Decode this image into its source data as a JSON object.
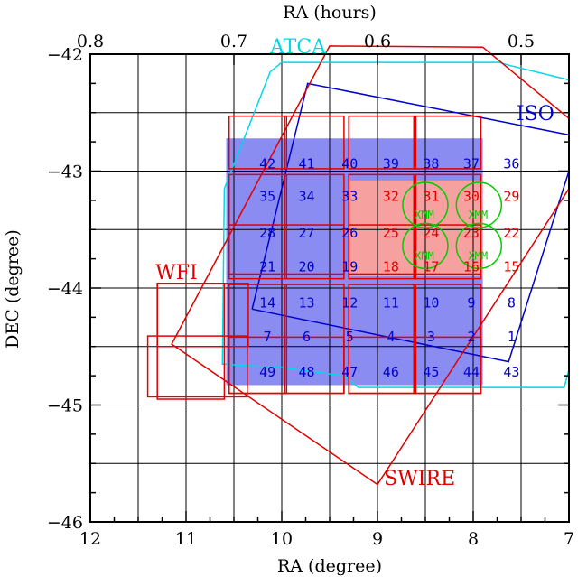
{
  "chart_data": {
    "type": "scatter",
    "xlabel": "RA (degree)",
    "ylabel": "DEC (degree)",
    "top_xlabel": "RA (hours)",
    "xlim": [
      12,
      7
    ],
    "ylim": [
      -46,
      -42
    ],
    "x_ticks": [
      "12",
      "11",
      "10",
      "9",
      "8",
      "7"
    ],
    "y_ticks": [
      "−42",
      "−43",
      "−44",
      "−45",
      "−46"
    ],
    "top_ticks": [
      {
        "label": "0.8",
        "ra": 12
      },
      {
        "label": "0.7",
        "ra": 10.5
      },
      {
        "label": "0.6",
        "ra": 9
      },
      {
        "label": "0.5",
        "ra": 7.5
      }
    ],
    "grid": {
      "ra_lines": [
        11.5,
        11,
        10.5,
        10,
        9.5,
        9,
        8.5,
        8,
        7.5
      ],
      "dec_lines": [
        -42.5,
        -43,
        -43.5,
        -44,
        -44.5,
        -45,
        -45.5
      ]
    },
    "colors": {
      "red": "#e00000",
      "blue": "#0000cc",
      "cyan": "#00d8e8",
      "green": "#00cc00",
      "blue_fill": "#8a8cf2",
      "pink_fill": "#f7a0a0",
      "black": "#000000"
    },
    "fields": [
      {
        "label": "42",
        "ra": 10.15,
        "dec": -42.93,
        "color": "blue"
      },
      {
        "label": "41",
        "ra": 9.74,
        "dec": -42.93,
        "color": "blue"
      },
      {
        "label": "40",
        "ra": 9.29,
        "dec": -42.93,
        "color": "blue"
      },
      {
        "label": "39",
        "ra": 8.86,
        "dec": -42.93,
        "color": "blue"
      },
      {
        "label": "38",
        "ra": 8.44,
        "dec": -42.93,
        "color": "blue"
      },
      {
        "label": "37",
        "ra": 8.02,
        "dec": -42.93,
        "color": "blue"
      },
      {
        "label": "36",
        "ra": 7.6,
        "dec": -42.93,
        "color": "blue"
      },
      {
        "label": "35",
        "ra": 10.15,
        "dec": -43.21,
        "color": "blue"
      },
      {
        "label": "34",
        "ra": 9.74,
        "dec": -43.21,
        "color": "blue"
      },
      {
        "label": "33",
        "ra": 9.29,
        "dec": -43.21,
        "color": "blue"
      },
      {
        "label": "32",
        "ra": 8.86,
        "dec": -43.21,
        "color": "red"
      },
      {
        "label": "31",
        "ra": 8.44,
        "dec": -43.21,
        "color": "red"
      },
      {
        "label": "30",
        "ra": 8.02,
        "dec": -43.21,
        "color": "red"
      },
      {
        "label": "29",
        "ra": 7.6,
        "dec": -43.21,
        "color": "red"
      },
      {
        "label": "28",
        "ra": 10.15,
        "dec": -43.52,
        "color": "blue"
      },
      {
        "label": "27",
        "ra": 9.74,
        "dec": -43.52,
        "color": "blue"
      },
      {
        "label": "26",
        "ra": 9.29,
        "dec": -43.52,
        "color": "blue"
      },
      {
        "label": "25",
        "ra": 8.86,
        "dec": -43.52,
        "color": "red"
      },
      {
        "label": "24",
        "ra": 8.44,
        "dec": -43.52,
        "color": "red"
      },
      {
        "label": "23",
        "ra": 8.02,
        "dec": -43.52,
        "color": "red"
      },
      {
        "label": "22",
        "ra": 7.6,
        "dec": -43.52,
        "color": "red"
      },
      {
        "label": "21",
        "ra": 10.15,
        "dec": -43.81,
        "color": "blue"
      },
      {
        "label": "20",
        "ra": 9.74,
        "dec": -43.81,
        "color": "blue"
      },
      {
        "label": "19",
        "ra": 9.29,
        "dec": -43.81,
        "color": "blue"
      },
      {
        "label": "18",
        "ra": 8.86,
        "dec": -43.81,
        "color": "red"
      },
      {
        "label": "17",
        "ra": 8.44,
        "dec": -43.81,
        "color": "red"
      },
      {
        "label": "16",
        "ra": 8.02,
        "dec": -43.81,
        "color": "red"
      },
      {
        "label": "15",
        "ra": 7.6,
        "dec": -43.81,
        "color": "red"
      },
      {
        "label": "14",
        "ra": 10.15,
        "dec": -44.12,
        "color": "blue"
      },
      {
        "label": "13",
        "ra": 9.74,
        "dec": -44.12,
        "color": "blue"
      },
      {
        "label": "12",
        "ra": 9.29,
        "dec": -44.12,
        "color": "blue"
      },
      {
        "label": "11",
        "ra": 8.86,
        "dec": -44.12,
        "color": "blue"
      },
      {
        "label": "10",
        "ra": 8.44,
        "dec": -44.12,
        "color": "blue"
      },
      {
        "label": "9",
        "ra": 8.02,
        "dec": -44.12,
        "color": "blue"
      },
      {
        "label": "8",
        "ra": 7.6,
        "dec": -44.12,
        "color": "blue"
      },
      {
        "label": "7",
        "ra": 10.15,
        "dec": -44.41,
        "color": "blue"
      },
      {
        "label": "6",
        "ra": 9.74,
        "dec": -44.41,
        "color": "blue"
      },
      {
        "label": "5",
        "ra": 9.29,
        "dec": -44.41,
        "color": "blue"
      },
      {
        "label": "4",
        "ra": 8.86,
        "dec": -44.41,
        "color": "blue"
      },
      {
        "label": "3",
        "ra": 8.44,
        "dec": -44.41,
        "color": "blue"
      },
      {
        "label": "2",
        "ra": 8.02,
        "dec": -44.41,
        "color": "blue"
      },
      {
        "label": "1",
        "ra": 7.6,
        "dec": -44.41,
        "color": "blue"
      },
      {
        "label": "49",
        "ra": 10.15,
        "dec": -44.71,
        "color": "blue"
      },
      {
        "label": "48",
        "ra": 9.74,
        "dec": -44.71,
        "color": "blue"
      },
      {
        "label": "47",
        "ra": 9.29,
        "dec": -44.71,
        "color": "blue"
      },
      {
        "label": "46",
        "ra": 8.86,
        "dec": -44.71,
        "color": "blue"
      },
      {
        "label": "45",
        "ra": 8.44,
        "dec": -44.71,
        "color": "blue"
      },
      {
        "label": "44",
        "ra": 8.02,
        "dec": -44.71,
        "color": "blue"
      },
      {
        "label": "43",
        "ra": 7.6,
        "dec": -44.71,
        "color": "blue"
      }
    ],
    "xmm_fields": [
      {
        "label": "XMM",
        "ra": 8.51,
        "dec": -43.29
      },
      {
        "label": "XMM",
        "ra": 7.95,
        "dec": -43.29
      },
      {
        "label": "XMM",
        "ra": 8.51,
        "dec": -43.64
      },
      {
        "label": "XMM",
        "ra": 7.95,
        "dec": -43.64
      }
    ],
    "region_labels": [
      {
        "label": "ATCA",
        "ra": 9.83,
        "dec": -41.93,
        "color": "cyan"
      },
      {
        "label": "ISO",
        "ra": 7.35,
        "dec": -42.5,
        "color": "blue"
      },
      {
        "label": "WFI",
        "ra": 11.1,
        "dec": -43.86,
        "color": "red"
      },
      {
        "label": "SWIRE",
        "ra": 8.56,
        "dec": -45.62,
        "color": "red"
      }
    ]
  }
}
